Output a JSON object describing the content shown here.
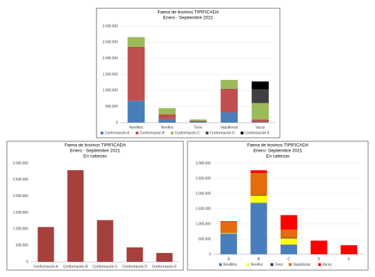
{
  "chart_data": [
    {
      "type": "bar",
      "title": "Faena de bovinos TIPIFICADA",
      "subtitle": "Enero - Septiembre 2021",
      "categories": [
        "Novillitos",
        "Novillos",
        "Toros",
        "Vaquillonas",
        "Vacas"
      ],
      "series": [
        {
          "name": "Conformación A",
          "color": "#4a7ebb",
          "values": [
            680000,
            110000,
            20000,
            320000,
            20000
          ]
        },
        {
          "name": "Conformación B",
          "color": "#c0504d",
          "values": [
            1680000,
            150000,
            40000,
            730000,
            80000
          ]
        },
        {
          "name": "Conformación C",
          "color": "#9bbb59",
          "values": [
            300000,
            190000,
            40000,
            280000,
            510000
          ]
        },
        {
          "name": "Conformación D",
          "color": "#404040",
          "values": [
            0,
            0,
            0,
            0,
            430000
          ]
        },
        {
          "name": "Conformación E",
          "color": "#000000",
          "values": [
            0,
            0,
            0,
            0,
            240000
          ]
        }
      ],
      "ylim": [
        0,
        3000000
      ],
      "yticks": [
        0,
        {
          "value": 500000,
          "label": "500.000"
        },
        {
          "value": 1000000,
          "label": "1.000.000"
        },
        {
          "value": 1500000,
          "label": "1.500.000"
        },
        {
          "value": 2000000,
          "label": "2.000.000"
        },
        {
          "value": 2500000,
          "label": "2.500.000"
        },
        {
          "value": 3000000,
          "label": "3.000.000"
        }
      ],
      "grid": true
    },
    {
      "type": "bar",
      "title": "Faena de bovinos TIPIFICADA",
      "subtitle": "Enero - Septiembre 2021",
      "unit_note": "En cabezas",
      "categories": [
        "Conformación A",
        "Conformación B",
        "Conformación C",
        "Conformación D",
        "Conformación E"
      ],
      "values": [
        1060000,
        2790000,
        1270000,
        440000,
        270000
      ],
      "color": "#a5403c",
      "ylim": [
        0,
        3000000
      ],
      "yticks": [
        0,
        {
          "value": 500000,
          "label": "500.000"
        },
        {
          "value": 1000000,
          "label": "1.000.000"
        },
        {
          "value": 1500000,
          "label": "1.500.000"
        },
        {
          "value": 2000000,
          "label": "2.000.000"
        },
        {
          "value": 2500000,
          "label": "2.500.000"
        },
        {
          "value": 3000000,
          "label": "3.000.000"
        }
      ],
      "grid": false
    },
    {
      "type": "bar",
      "title": "Faena de bovinos TIPIFICADA",
      "subtitle": "Enero- Septiembre 2021",
      "unit_note": "En cabezas",
      "categories": [
        "A",
        "B",
        "C",
        "D",
        "E"
      ],
      "series": [
        {
          "name": "Novillitos",
          "color": "#4a7ebb",
          "values": [
            680000,
            1700000,
            320000,
            0,
            0
          ]
        },
        {
          "name": "Novillos",
          "color": "#ffff00",
          "values": [
            20000,
            230000,
            200000,
            0,
            0
          ]
        },
        {
          "name": "Toros",
          "color": "#1f3864",
          "values": [
            10000,
            20000,
            20000,
            0,
            0
          ]
        },
        {
          "name": "Vaquillonas",
          "color": "#e46c0a",
          "values": [
            360000,
            730000,
            270000,
            0,
            0
          ]
        },
        {
          "name": "Vacas",
          "color": "#ff0000",
          "values": [
            20000,
            90000,
            480000,
            450000,
            300000
          ]
        }
      ],
      "ylim": [
        0,
        3000000
      ],
      "yticks": [
        0,
        {
          "value": 500000,
          "label": "500.000"
        },
        {
          "value": 1000000,
          "label": "1.000.000"
        },
        {
          "value": 1500000,
          "label": "1.500.000"
        },
        {
          "value": 2000000,
          "label": "2.000.000"
        },
        {
          "value": 2500000,
          "label": "2.500.000"
        },
        {
          "value": 3000000,
          "label": "3.000.000"
        }
      ],
      "grid": true
    }
  ]
}
